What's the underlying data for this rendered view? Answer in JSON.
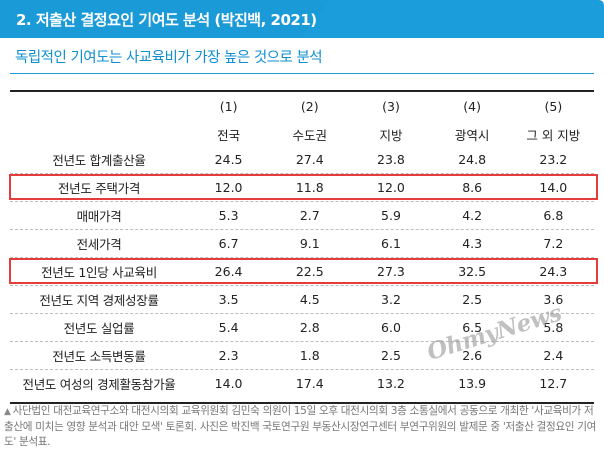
{
  "header": {
    "title": "2. 저출산 결정요인 기여도 분석 (박진백, 2021)",
    "bg_color": "#1a9ad7"
  },
  "subtitle": "독립적인 기여도는 사교육비가 가장 높은 것으로 분석",
  "table": {
    "column_numbers": [
      "(1)",
      "(2)",
      "(3)",
      "(4)",
      "(5)"
    ],
    "column_names": [
      "전국",
      "수도권",
      "지방",
      "광역시",
      "그 외 지방"
    ],
    "rows": [
      {
        "label": "전년도 합계출산율",
        "values": [
          "24.5",
          "27.4",
          "23.8",
          "24.8",
          "23.2"
        ]
      },
      {
        "label": "전년도 주택가격",
        "values": [
          "12.0",
          "11.8",
          "12.0",
          "8.6",
          "14.0"
        ]
      },
      {
        "label": "매매가격",
        "values": [
          "5.3",
          "2.7",
          "5.9",
          "4.2",
          "6.8"
        ]
      },
      {
        "label": "전세가격",
        "values": [
          "6.7",
          "9.1",
          "6.1",
          "4.3",
          "7.2"
        ]
      },
      {
        "label": "전년도 1인당 사교육비",
        "values": [
          "26.4",
          "22.5",
          "27.3",
          "32.5",
          "24.3"
        ]
      },
      {
        "label": "전년도 지역 경제성장률",
        "values": [
          "3.5",
          "4.5",
          "3.2",
          "2.5",
          "3.6"
        ]
      },
      {
        "label": "전년도 실업률",
        "values": [
          "5.4",
          "2.8",
          "6.0",
          "6.5",
          "5.8"
        ]
      },
      {
        "label": "전년도 소득변동률",
        "values": [
          "2.3",
          "1.8",
          "2.5",
          "2.6",
          "2.4"
        ]
      },
      {
        "label": "전년도 여성의 경제활동참가율",
        "values": [
          "14.0",
          "17.4",
          "13.2",
          "13.9",
          "12.7"
        ]
      }
    ],
    "highlight_color": "#e43b3b"
  },
  "watermark": "OhmyNews",
  "caption": "사단법인 대전교육연구소와 대전시의회 교육위원회 김민숙 의원이 15일 오후 대전시의회 3층 소통실에서 공동으로 개최한 '사교육비가 저출산에 미치는 영향 분석과 대안 모색' 토론회. 사진은 박진백 국토연구원 부동산시장연구센터 부연구위원의 발제문 중 '저출산 결정요인 기여도' 분석표."
}
